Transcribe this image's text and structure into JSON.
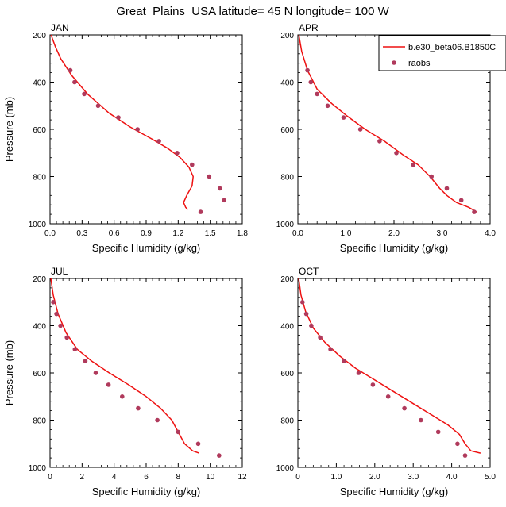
{
  "page_title": "Great_Plains_USA  latitude= 45 N longitude= 100 W",
  "legend": {
    "model_label": "b.e30_beta06.B1850C",
    "obs_label": "raobs"
  },
  "colors": {
    "model": "#ee1111",
    "obs": "#b03a5c"
  },
  "chart_data": [
    {
      "type": "line",
      "title": "JAN",
      "xlabel": "Specific Humidity (g/kg)",
      "ylabel": "Pressure (mb)",
      "xlim": [
        0,
        1.8
      ],
      "ylim": [
        200,
        1000
      ],
      "y_inverted": true,
      "xticks": [
        "0.0",
        "0.3",
        "0.6",
        "0.9",
        "1.2",
        "1.5",
        "1.8"
      ],
      "yticks": [
        "200",
        "400",
        "600",
        "800",
        "1000"
      ],
      "series": [
        {
          "name": "b.e30_beta06.B1850C",
          "style": "line",
          "x": [
            0.01,
            0.05,
            0.1,
            0.2,
            0.35,
            0.55,
            0.75,
            0.95,
            1.1,
            1.22,
            1.3,
            1.34,
            1.33,
            1.28,
            1.25,
            1.27,
            1.29
          ],
          "y": [
            200,
            250,
            300,
            370,
            450,
            530,
            590,
            640,
            680,
            720,
            760,
            800,
            840,
            880,
            910,
            930,
            940
          ]
        },
        {
          "name": "raobs",
          "style": "marker",
          "x": [
            0.19,
            0.23,
            0.32,
            0.45,
            0.64,
            0.82,
            1.02,
            1.19,
            1.33,
            1.49,
            1.59,
            1.63,
            1.41
          ],
          "y": [
            350,
            400,
            450,
            500,
            550,
            600,
            650,
            700,
            750,
            800,
            850,
            900,
            950
          ]
        }
      ]
    },
    {
      "type": "line",
      "title": "APR",
      "xlabel": "Specific Humidity (g/kg)",
      "ylabel": "",
      "xlim": [
        0,
        4.0
      ],
      "ylim": [
        200,
        1000
      ],
      "y_inverted": true,
      "xticks": [
        "0.0",
        "1.0",
        "2.0",
        "3.0",
        "4.0"
      ],
      "yticks": [
        "200",
        "400",
        "600",
        "800",
        "1000"
      ],
      "series": [
        {
          "name": "b.e30_beta06.B1850C",
          "style": "line",
          "x": [
            0.02,
            0.08,
            0.2,
            0.4,
            0.7,
            1.0,
            1.4,
            1.8,
            2.2,
            2.5,
            2.75,
            2.95,
            3.1,
            3.3,
            3.55,
            3.72
          ],
          "y": [
            200,
            270,
            350,
            430,
            490,
            540,
            600,
            650,
            710,
            750,
            800,
            850,
            880,
            910,
            930,
            950
          ]
        },
        {
          "name": "raobs",
          "style": "marker",
          "x": [
            0.2,
            0.27,
            0.4,
            0.62,
            0.95,
            1.3,
            1.7,
            2.05,
            2.4,
            2.78,
            3.1,
            3.4,
            3.67
          ],
          "y": [
            350,
            400,
            450,
            500,
            550,
            600,
            650,
            700,
            750,
            800,
            850,
            900,
            950
          ]
        }
      ]
    },
    {
      "type": "line",
      "title": "JUL",
      "xlabel": "Specific Humidity (g/kg)",
      "ylabel": "Pressure (mb)",
      "xlim": [
        0,
        12
      ],
      "ylim": [
        200,
        1000
      ],
      "y_inverted": true,
      "xticks": [
        "0",
        "2",
        "4",
        "6",
        "8",
        "10",
        "12"
      ],
      "yticks": [
        "200",
        "400",
        "600",
        "800",
        "1000"
      ],
      "series": [
        {
          "name": "b.e30_beta06.B1850C",
          "style": "line",
          "x": [
            0.05,
            0.2,
            0.5,
            1.0,
            1.7,
            2.6,
            3.7,
            4.9,
            6.0,
            6.9,
            7.6,
            8.0,
            8.4,
            8.9,
            9.3
          ],
          "y": [
            200,
            270,
            350,
            430,
            500,
            550,
            600,
            650,
            700,
            750,
            800,
            850,
            900,
            930,
            940
          ]
        },
        {
          "name": "raobs",
          "style": "marker",
          "x": [
            0.2,
            0.4,
            0.65,
            1.05,
            1.55,
            2.2,
            2.85,
            3.65,
            4.5,
            5.5,
            6.7,
            8.0,
            9.25,
            10.55
          ],
          "y": [
            300,
            350,
            400,
            450,
            500,
            550,
            600,
            650,
            700,
            750,
            800,
            850,
            900,
            950
          ]
        }
      ]
    },
    {
      "type": "line",
      "title": "OCT",
      "xlabel": "Specific Humidity (g/kg)",
      "ylabel": "",
      "xlim": [
        0,
        5.0
      ],
      "ylim": [
        200,
        1000
      ],
      "y_inverted": true,
      "xticks": [
        "0",
        "1.0",
        "2.0",
        "3.0",
        "4.0",
        "5.0"
      ],
      "yticks": [
        "200",
        "400",
        "600",
        "800",
        "1000"
      ],
      "series": [
        {
          "name": "b.e30_beta06.B1850C",
          "style": "line",
          "x": [
            0.02,
            0.08,
            0.2,
            0.4,
            0.7,
            1.1,
            1.5,
            2.0,
            2.5,
            3.0,
            3.5,
            3.9,
            4.2,
            4.35,
            4.5,
            4.75
          ],
          "y": [
            200,
            270,
            340,
            410,
            470,
            530,
            580,
            630,
            680,
            730,
            780,
            820,
            860,
            900,
            930,
            940
          ]
        },
        {
          "name": "raobs",
          "style": "marker",
          "x": [
            0.12,
            0.22,
            0.35,
            0.58,
            0.85,
            1.2,
            1.58,
            1.95,
            2.35,
            2.77,
            3.2,
            3.65,
            4.15,
            4.35
          ],
          "y": [
            300,
            350,
            400,
            450,
            500,
            550,
            600,
            650,
            700,
            750,
            800,
            850,
            900,
            950
          ]
        }
      ]
    }
  ]
}
